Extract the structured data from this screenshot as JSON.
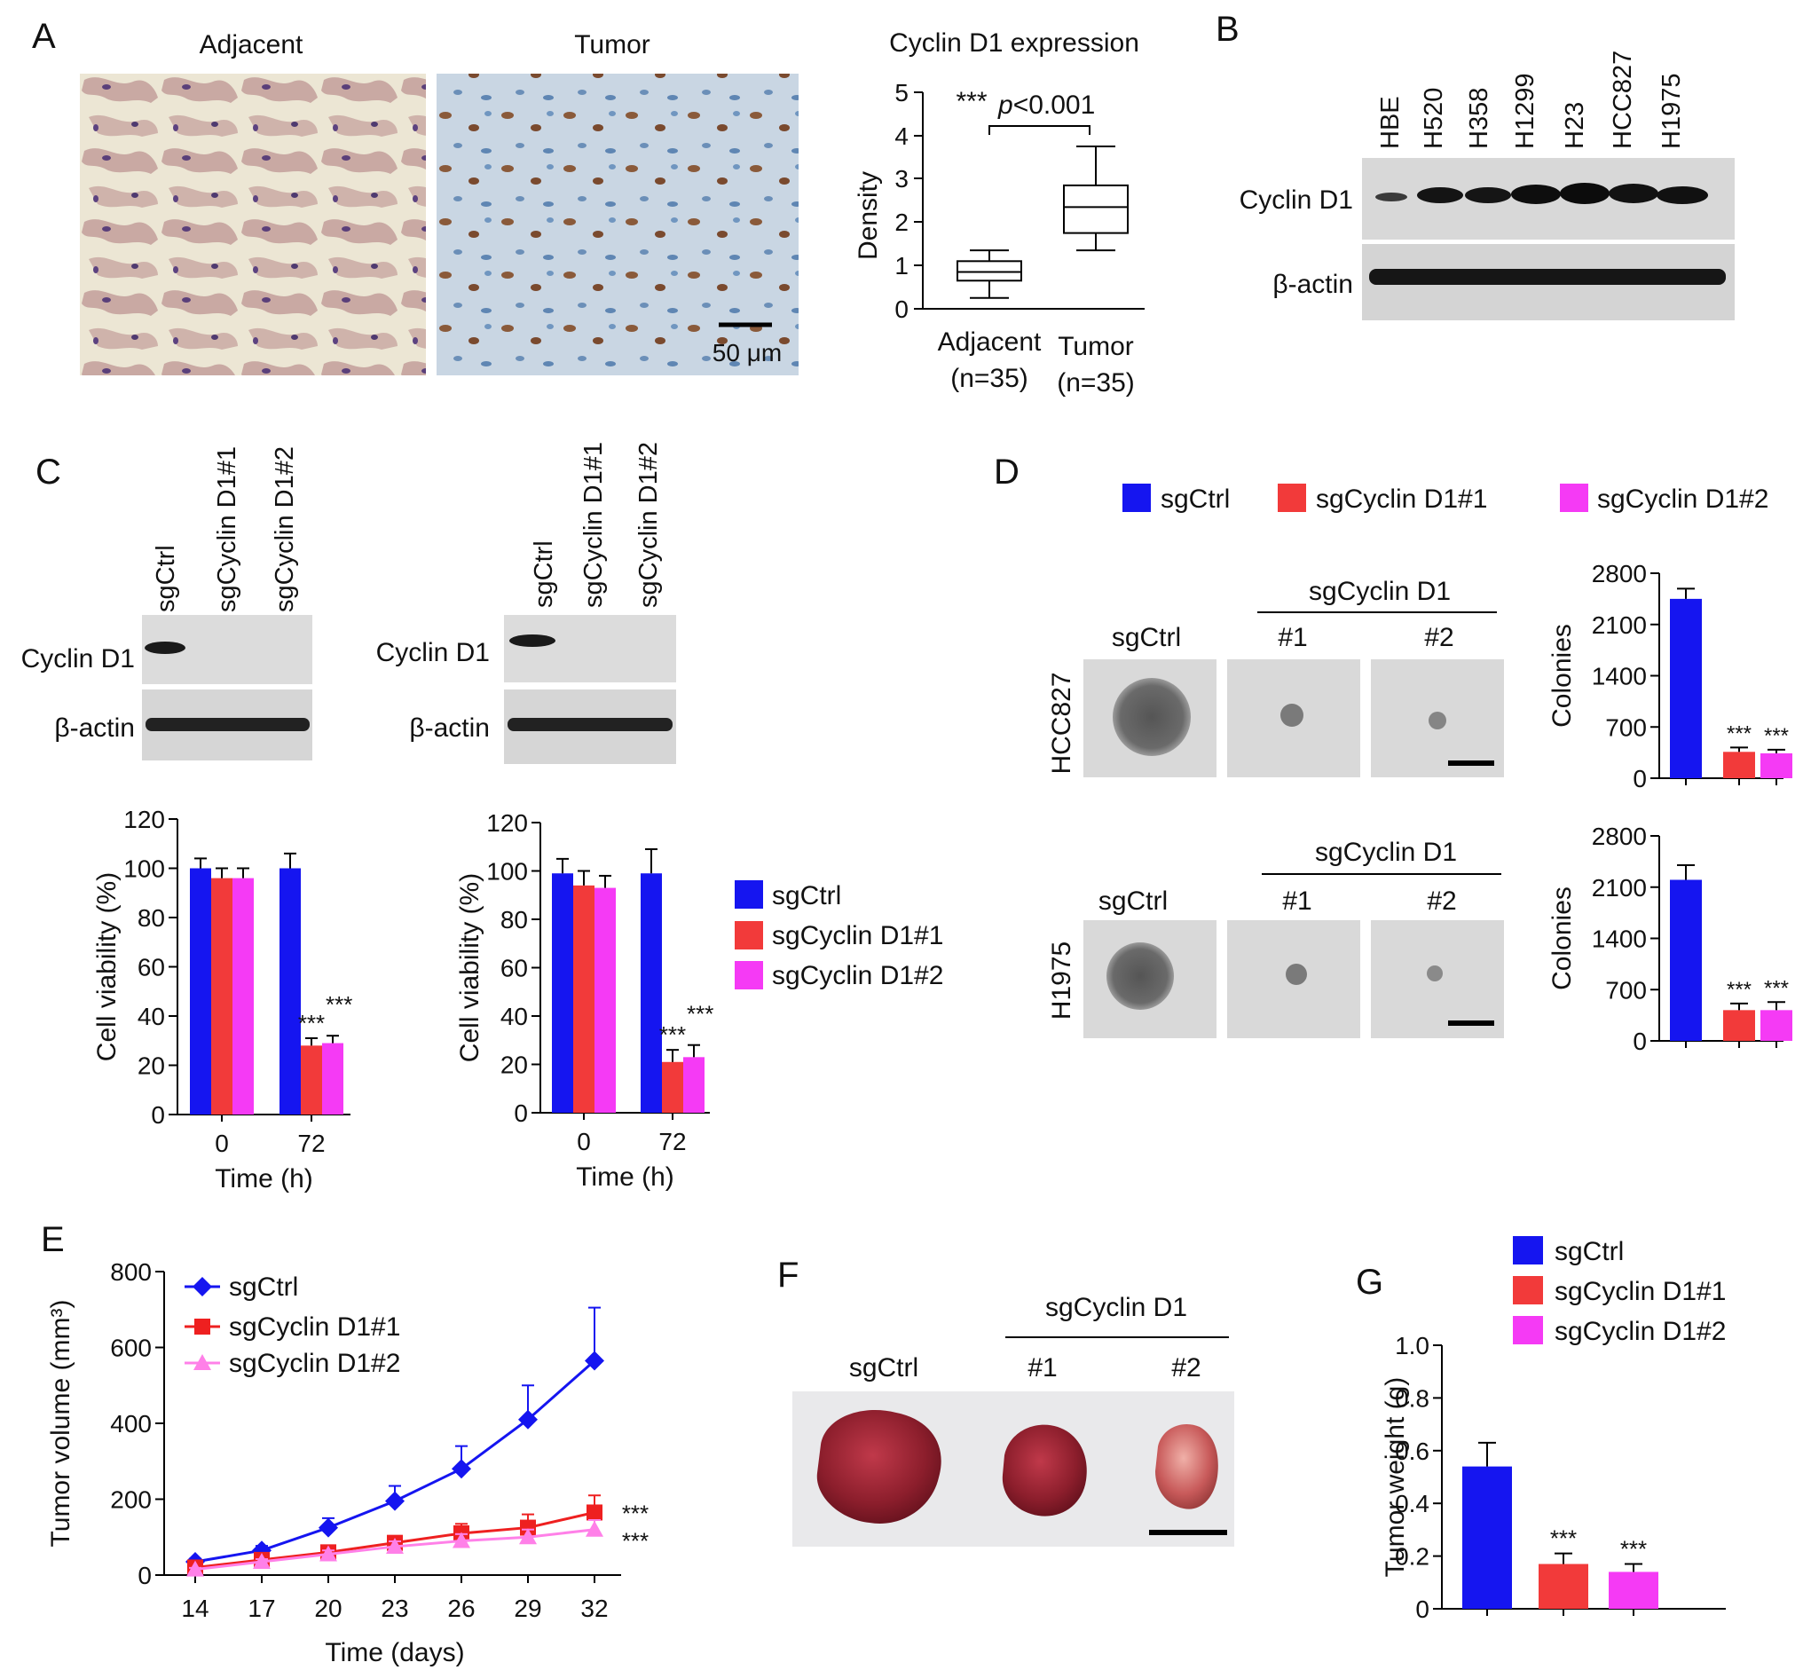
{
  "panel_letters": [
    "A",
    "B",
    "C",
    "D",
    "E",
    "F",
    "G"
  ],
  "colors": {
    "sgCtrl": "#1515f0",
    "sgCyclinD1_1": "#f23a3a",
    "sgCyclinD1_2": "#f53af5",
    "red_line": "#ee2020",
    "pink_line": "#ff80e8"
  },
  "panelA": {
    "labels": [
      "Adjacent",
      "Tumor"
    ],
    "scale_bar": "50 μm",
    "boxplot": {
      "title": "Cyclin D1 expression",
      "ylabel": "Density",
      "yticks": [
        "0",
        "1",
        "2",
        "3",
        "4",
        "5"
      ],
      "stars": "***",
      "p_prefix": "p",
      "p_value": "<0.001",
      "categories": [
        {
          "name": "Adjacent",
          "n": "(n=35)"
        },
        {
          "name": "Tumor",
          "n": "(n=35)"
        }
      ]
    }
  },
  "panelB": {
    "lanes": [
      "HBE",
      "H520",
      "H358",
      "H1299",
      "H23",
      "HCC827",
      "H1975"
    ],
    "rows": [
      "Cyclin D1",
      "β-actin"
    ]
  },
  "panelC": {
    "lanes": [
      "sgCtrl",
      "sgCyclin D1#1",
      "sgCyclin D1#2"
    ],
    "rows": [
      "Cyclin D1",
      "β-actin"
    ],
    "legend": [
      "sgCtrl",
      "sgCyclin D1#1",
      "sgCyclin D1#2"
    ],
    "ylabel": "Cell viability (%)",
    "xlabel": "Time (h)",
    "yticks": [
      "0",
      "20",
      "40",
      "60",
      "80",
      "100",
      "120"
    ],
    "xticks": [
      "0",
      "72"
    ],
    "stars": "***"
  },
  "panelD": {
    "legend": [
      "sgCtrl",
      "sgCyclin D1#1",
      "sgCyclin D1#2"
    ],
    "group_label": "sgCyclin D1",
    "column_labels": [
      "sgCtrl",
      "#1",
      "#2"
    ],
    "row_labels": [
      "HCC827",
      "H1975"
    ],
    "ylabel": "Colonies",
    "yticks": [
      "0",
      "700",
      "1400",
      "2100",
      "2800"
    ],
    "stars": "***"
  },
  "panelE": {
    "legend": [
      "sgCtrl",
      "sgCyclin D1#1",
      "sgCyclin D1#2"
    ],
    "ylabel": "Tumor volume (mm³)",
    "xlabel": "Time (days)",
    "yticks": [
      "0",
      "200",
      "400",
      "600",
      "800"
    ],
    "xticks": [
      "14",
      "17",
      "20",
      "23",
      "26",
      "29",
      "32"
    ],
    "stars": "***"
  },
  "panelF": {
    "group_label": "sgCyclin D1",
    "column_labels": [
      "sgCtrl",
      "#1",
      "#2"
    ]
  },
  "panelG": {
    "legend": [
      "sgCtrl",
      "sgCyclin D1#1",
      "sgCyclin D1#2"
    ],
    "ylabel": "Tumor weight (g)",
    "yticks": [
      "0",
      "0.2",
      "0.4",
      "0.6",
      "0.8",
      "1.0"
    ],
    "stars": "***"
  },
  "chart_data": [
    {
      "id": "A-box",
      "type": "box",
      "title": "Cyclin D1 expression",
      "ylabel": "Density",
      "ylim": [
        0,
        5
      ],
      "categories": [
        "Adjacent",
        "Tumor"
      ],
      "boxes": [
        {
          "min": 0.25,
          "q1": 0.65,
          "median": 0.85,
          "q3": 1.1,
          "max": 1.35
        },
        {
          "min": 1.35,
          "q1": 1.75,
          "median": 2.35,
          "q3": 2.85,
          "max": 3.75
        }
      ]
    },
    {
      "id": "C-left",
      "type": "bar",
      "xlabel": "Time (h)",
      "ylabel": "Cell viability (%)",
      "ylim": [
        0,
        120
      ],
      "categories": [
        "0",
        "72"
      ],
      "series": [
        {
          "name": "sgCtrl",
          "values": [
            100,
            100
          ],
          "errors": [
            4,
            6
          ]
        },
        {
          "name": "sgCyclin D1#1",
          "values": [
            96,
            28
          ],
          "errors": [
            4,
            3
          ]
        },
        {
          "name": "sgCyclin D1#2",
          "values": [
            96,
            29
          ],
          "errors": [
            4,
            3
          ]
        }
      ]
    },
    {
      "id": "C-right",
      "type": "bar",
      "xlabel": "Time (h)",
      "ylabel": "Cell viability (%)",
      "ylim": [
        0,
        120
      ],
      "categories": [
        "0",
        "72"
      ],
      "series": [
        {
          "name": "sgCtrl",
          "values": [
            99,
            99
          ],
          "errors": [
            6,
            10
          ]
        },
        {
          "name": "sgCyclin D1#1",
          "values": [
            94,
            21
          ],
          "errors": [
            6,
            5
          ]
        },
        {
          "name": "sgCyclin D1#2",
          "values": [
            93,
            23
          ],
          "errors": [
            5,
            5
          ]
        }
      ]
    },
    {
      "id": "D-HCC827",
      "type": "bar",
      "ylabel": "Colonies",
      "ylim": [
        0,
        2800
      ],
      "categories": [
        "sgCtrl",
        "sgCyclin D1#1",
        "sgCyclin D1#2"
      ],
      "values": [
        2450,
        360,
        340
      ],
      "errors": [
        140,
        60,
        50
      ]
    },
    {
      "id": "D-H1975",
      "type": "bar",
      "ylabel": "Colonies",
      "ylim": [
        0,
        2800
      ],
      "categories": [
        "sgCtrl",
        "sgCyclin D1#1",
        "sgCyclin D1#2"
      ],
      "values": [
        2200,
        420,
        420
      ],
      "errors": [
        200,
        90,
        110
      ]
    },
    {
      "id": "E",
      "type": "line",
      "xlabel": "Time (days)",
      "ylabel": "Tumor volume (mm³)",
      "ylim": [
        0,
        800
      ],
      "x": [
        14,
        17,
        20,
        23,
        26,
        29,
        32
      ],
      "series": [
        {
          "name": "sgCtrl",
          "values": [
            35,
            65,
            125,
            195,
            280,
            410,
            565
          ],
          "errors": [
            8,
            12,
            25,
            40,
            60,
            90,
            140
          ]
        },
        {
          "name": "sgCyclin D1#1",
          "values": [
            20,
            40,
            60,
            85,
            110,
            125,
            165
          ],
          "errors": [
            5,
            8,
            12,
            18,
            25,
            35,
            45
          ]
        },
        {
          "name": "sgCyclin D1#2",
          "values": [
            15,
            35,
            55,
            75,
            90,
            100,
            120
          ],
          "errors": [
            4,
            7,
            10,
            14,
            18,
            20,
            25
          ]
        }
      ]
    },
    {
      "id": "G",
      "type": "bar",
      "ylabel": "Tumor weight (g)",
      "ylim": [
        0,
        1.0
      ],
      "categories": [
        "sgCtrl",
        "sgCyclin D1#1",
        "sgCyclin D1#2"
      ],
      "values": [
        0.54,
        0.17,
        0.14
      ],
      "errors": [
        0.09,
        0.04,
        0.03
      ]
    }
  ]
}
